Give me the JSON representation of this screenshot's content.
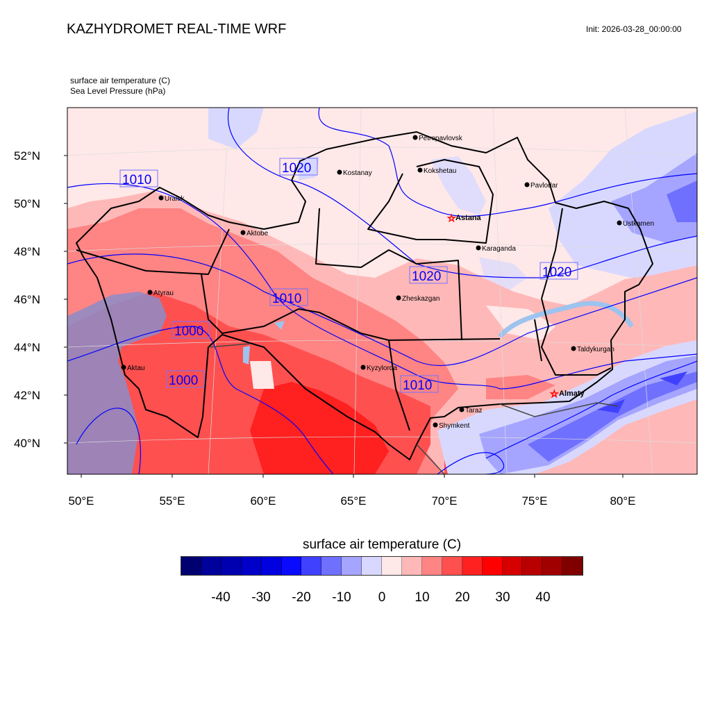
{
  "header": {
    "title": "KAZHYDROMET REAL-TIME WRF",
    "init": "Init: 2026-03-28_00:00:00",
    "subtitle_1": "surface air temperature   (C)",
    "subtitle_2": "Sea Level Pressure   (hPa)"
  },
  "axes": {
    "lat_labels": [
      "52°N",
      "50°N",
      "48°N",
      "46°N",
      "44°N",
      "42°N",
      "40°N"
    ],
    "lon_labels": [
      "50°E",
      "55°E",
      "60°E",
      "65°E",
      "70°E",
      "75°E",
      "80°E"
    ]
  },
  "cities": {
    "petropavlovsk": "Petropavlovsk",
    "kostanay": "Kostanay",
    "kokshetau": "Kokshetau",
    "pavlodar": "Pavlodar",
    "astana": "Astana",
    "uralsk": "Uralsk",
    "aktobe": "Aktobe",
    "karaganda": "Karaganda",
    "ustkamen": "Ustkamen",
    "atyrau": "Atyrau",
    "zheskazgan": "Zheskazgan",
    "taldykurgan": "Taldykurgan",
    "kyzylorda": "Kyzylorda",
    "aktau": "Aktau",
    "almaty": "Almaty",
    "taraz": "Taraz",
    "shymkent": "Shymkent"
  },
  "isobar_labels": [
    "1010",
    "1020",
    "1010",
    "1020",
    "1000",
    "1010",
    "1000",
    "1010",
    "1020"
  ],
  "colorbar": {
    "title": "surface air temperature  (C)",
    "labels": [
      "-40",
      "-30",
      "-20",
      "-10",
      "0",
      "10",
      "20",
      "30",
      "40"
    ],
    "colors": [
      "#000070",
      "#00009a",
      "#0000b0",
      "#0000c8",
      "#0000e0",
      "#0a0aff",
      "#4040ff",
      "#7070ff",
      "#a5a5ff",
      "#d8d8ff",
      "#ffe8e8",
      "#ffb8b8",
      "#ff8484",
      "#ff5050",
      "#ff2020",
      "#ff0000",
      "#d60000",
      "#b80000",
      "#a00000",
      "#800000"
    ]
  }
}
